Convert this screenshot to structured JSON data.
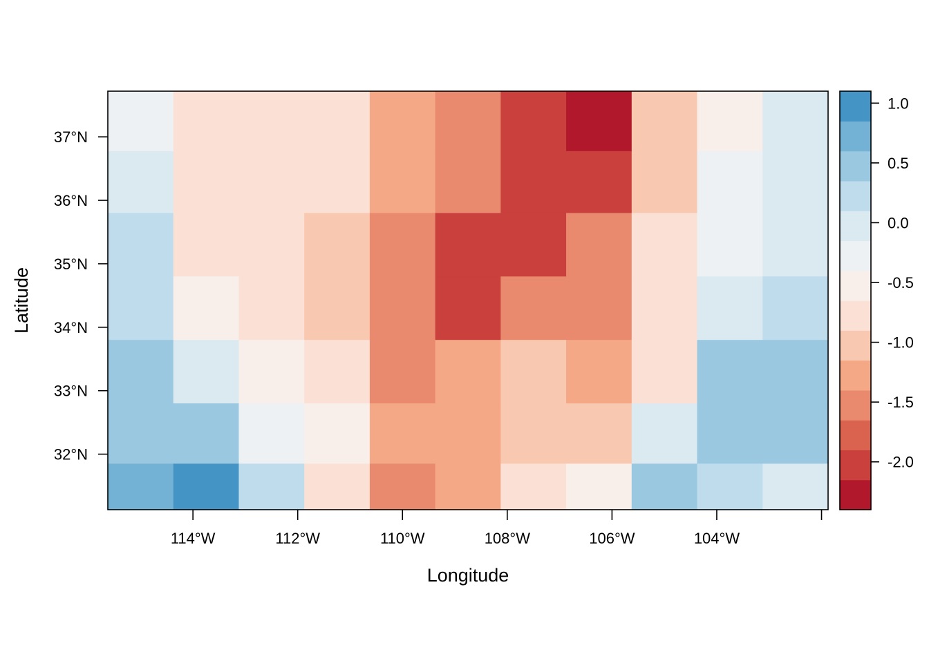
{
  "chart_data": {
    "type": "heatmap",
    "xlabel": "Longitude",
    "ylabel": "Latitude",
    "x_ticks": [
      {
        "value": -114,
        "label": "114°W"
      },
      {
        "value": -112,
        "label": "112°W"
      },
      {
        "value": -110,
        "label": "110°W"
      },
      {
        "value": -108,
        "label": "108°W"
      },
      {
        "value": -106,
        "label": "106°W"
      },
      {
        "value": -104,
        "label": "104°W"
      },
      {
        "value": -102,
        "label": ""
      }
    ],
    "y_ticks": [
      {
        "value": 32,
        "label": "32°N"
      },
      {
        "value": 33,
        "label": "33°N"
      },
      {
        "value": 34,
        "label": "34°N"
      },
      {
        "value": 35,
        "label": "35°N"
      },
      {
        "value": 36,
        "label": "36°N"
      },
      {
        "value": 37,
        "label": "37°N"
      }
    ],
    "xlim": [
      -115.625,
      -101.875
    ],
    "ylim": [
      31.125,
      37.72
    ],
    "x_centers": [
      -115,
      -113.75,
      -112.5,
      -111.25,
      -110,
      -108.75,
      -107.5,
      -106.25,
      -105,
      -103.75,
      -102.5
    ],
    "y_centers": [
      37.25,
      36.3,
      35.3,
      34.3,
      33.3,
      32.3,
      31.4
    ],
    "z": [
      [
        -0.3,
        -0.75,
        -0.75,
        -0.75,
        -1.2,
        -1.4,
        -1.9,
        -2.3,
        -1.05,
        -0.55,
        -0.05
      ],
      [
        -0.05,
        -0.75,
        -0.75,
        -0.75,
        -1.2,
        -1.6,
        -2.05,
        -1.9,
        -1.05,
        -0.3,
        -0.05
      ],
      [
        0.15,
        -0.75,
        -0.75,
        -1.05,
        -1.6,
        -2.05,
        -2.05,
        -1.4,
        -0.75,
        -0.3,
        -0.05
      ],
      [
        0.15,
        -0.55,
        -0.75,
        -1.05,
        -1.4,
        -1.9,
        -1.6,
        -1.4,
        -0.75,
        -0.05,
        0.15
      ],
      [
        0.4,
        -0.05,
        -0.55,
        -0.75,
        -1.4,
        -1.2,
        -1.05,
        -1.2,
        -0.75,
        0.4,
        0.4
      ],
      [
        0.6,
        0.4,
        -0.3,
        -0.55,
        -1.2,
        -1.2,
        -1.05,
        -1.05,
        -0.05,
        0.4,
        0.4
      ],
      [
        0.85,
        1.05,
        0.15,
        -0.75,
        -1.4,
        -1.2,
        -0.75,
        -0.55,
        0.4,
        0.15,
        -0.05
      ]
    ],
    "colorbar": {
      "breaks": [
        -2.4,
        -2.15,
        -1.9,
        -1.65,
        -1.4,
        -1.15,
        -0.9,
        -0.65,
        -0.4,
        -0.15,
        0.1,
        0.35,
        0.6,
        0.85,
        1.1
      ],
      "colors": [
        "#b2182b",
        "#c9403d",
        "#da6350",
        "#e98a6f",
        "#f4a886",
        "#f9c8b0",
        "#fbe1d5",
        "#f8efea",
        "#edf1f4",
        "#dbe9f1",
        "#bfdcec",
        "#9ac8e0",
        "#73b2d4",
        "#4594c6",
        "#337eb8",
        "#2166ac"
      ],
      "ticks": [
        {
          "value": 1.0,
          "label": "1.0"
        },
        {
          "value": 0.5,
          "label": "0.5"
        },
        {
          "value": 0.0,
          "label": "0.0"
        },
        {
          "value": -0.5,
          "label": "-0.5"
        },
        {
          "value": -1.0,
          "label": "-1.0"
        },
        {
          "value": -1.5,
          "label": "-1.5"
        },
        {
          "value": -2.0,
          "label": "-2.0"
        }
      ]
    }
  }
}
